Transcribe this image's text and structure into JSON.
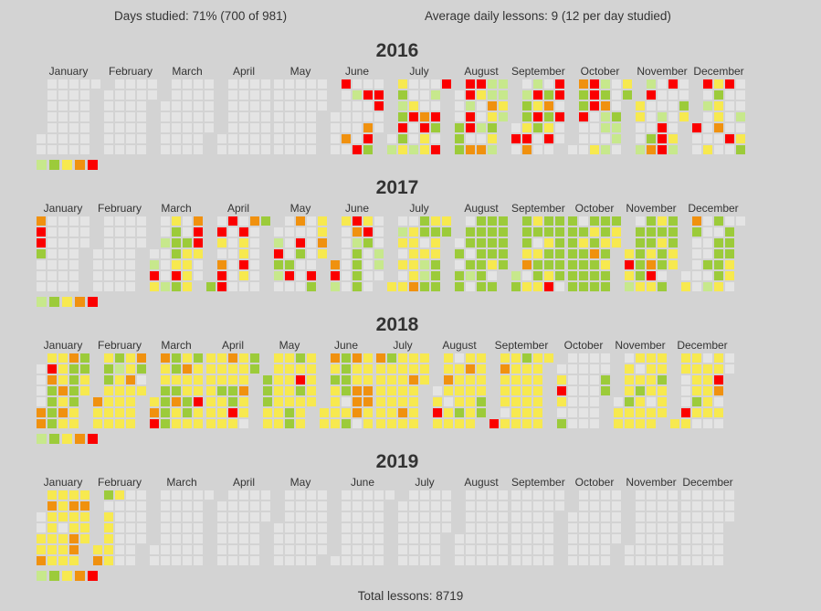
{
  "chart_data": {
    "type": "heatmap",
    "stats": {
      "days_studied": "Days studied: 71% (700 of 981)",
      "average_daily": "Average daily lessons: 9 (12 per day studied)",
      "total_lessons": "Total lessons: 8719"
    },
    "month_names": [
      "January",
      "February",
      "March",
      "April",
      "May",
      "June",
      "July",
      "August",
      "September",
      "October",
      "November",
      "December"
    ],
    "layout": {
      "week_start": "Sunday",
      "rows": "weekdays (Sun-Sat)",
      "columns": "weeks of month",
      "legend_position": "bottom-left of each year"
    },
    "colors": {
      "background": "#d3d3d3",
      "empty_cell": "#e4e4e4",
      "levels": [
        "#c7e88c",
        "#9ccb3a",
        "#f7e94f",
        "#f0910f",
        "#fb0000"
      ],
      "text": "#333333"
    },
    "level_names": [
      "none",
      "light-green",
      "green",
      "yellow",
      "orange",
      "red"
    ],
    "years": [
      {
        "label": "2016",
        "days": [
          "0000000000000000000000000000000",
          "00000000000000000000000000000",
          "0000000000000000000000000000000",
          "000000000000000000000000000000",
          "0000000000000000000000000000000",
          "000050000400100005050045205500",
          "0132125230035001000453301052055",
          "0002225515504530010411432311131",
          "050012235415352000242350550500",
          "0422500055500031241101000211032",
          "330011500024000155550000310023",
          "5005010003323340050000500001032"
        ]
      },
      {
        "label": "2017",
        "days": [
          "4552000000000000000000000000000",
          "0000000000000000000000000000",
          "0153001000132223520023333455300",
          "205304555000000053353040000002",
          "0152100000250405200000000523343",
          "451300000054122223520000000110",
          "3013030303333342203112323322232",
          "0202202202102222222222230222222",
          "122223403320322322322352222220",
          "2222222023222223242222232322233",
          "353102222232223453323220222233",
          "0342000000000201202222302223300"
        ]
      },
      {
        "label": "2018",
        "days": [
          "0000443542222333434342222332233",
          "4333223333213333333433334203",
          "3454332222223243334332232333533",
          "333333333323334332253333433022",
          "2223333333333333322235233333333",
          "334323333222203243344403334433",
          "4333333233333333333433343333333",
          "0353334303303333233433333333322",
          "534333033333333233333333333333",
          "0353020000000000000000000000022",
          "033033323330323333333033332333",
          "3330005333332300333330335403000"
        ]
      },
      {
        "label": "2019",
        "days": [
          "0033434333333330333343344334333",
          "3420333333000000000000000000",
          "0000000000000000000000000000000",
          "000000000000000000000000000000",
          "0000000000000000000000000000000",
          "000000000000000000000000000000",
          "0000000000000000000000000000000",
          "0000000000000000000000000000000",
          "000000000000000000000000000000",
          "0000000000000000000000000000000",
          "000000000000000000000000000000",
          "0000000000000000000000000000000"
        ]
      }
    ]
  }
}
